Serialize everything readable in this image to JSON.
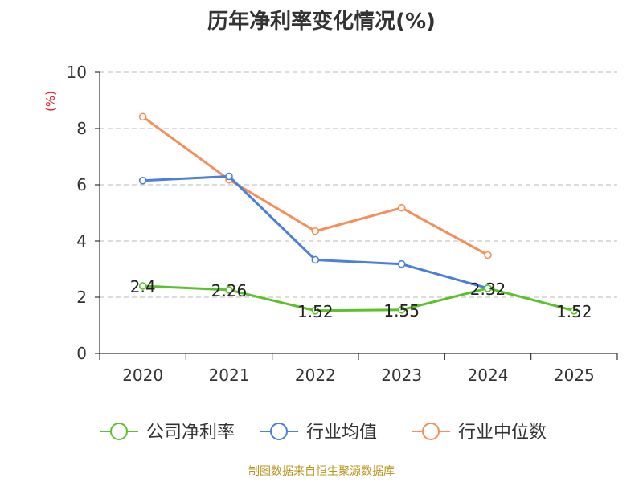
{
  "title": "历年净利率变化情况(%)",
  "footer": "制图数据来自恒生聚源数据库",
  "chart_data": {
    "type": "line",
    "ylabel": "(%)",
    "xlabel": "",
    "ylim": [
      0,
      10
    ],
    "yticks": [
      0,
      2,
      4,
      6,
      8,
      10
    ],
    "grid": true,
    "legend_position": "bottom",
    "categories": [
      "2020",
      "2021",
      "2022",
      "2023",
      "2024",
      "2025"
    ],
    "series": [
      {
        "name": "公司净利率",
        "color": "#5cc12b",
        "values": [
          2.4,
          2.26,
          1.52,
          1.55,
          2.32,
          1.52
        ],
        "labels": [
          "2.4",
          "2.26",
          "1.52",
          "1.55",
          "2.32",
          "1.52"
        ]
      },
      {
        "name": "行业均值",
        "color": "#4a7fdc",
        "values": [
          6.15,
          6.3,
          3.33,
          3.18,
          2.32,
          null
        ]
      },
      {
        "name": "行业中位数",
        "color": "#f58f5a",
        "values": [
          8.42,
          6.18,
          4.35,
          5.18,
          3.5,
          null
        ]
      }
    ]
  }
}
